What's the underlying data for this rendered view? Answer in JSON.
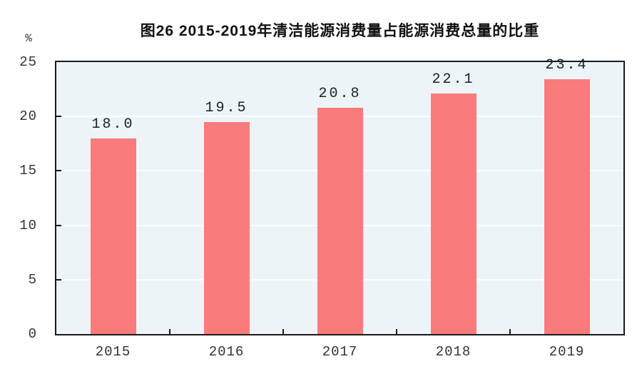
{
  "figure": {
    "title": "图26  2015-2019年清洁能源消费量占能源消费总量的比重",
    "unit_label": "%"
  },
  "colors": {
    "bar": "#FA7B7B",
    "plot_background": "#EDF4F8",
    "gridline": "#FBFDFE",
    "axis": "#1A1A1A",
    "tick_text": "#2E3238",
    "title_text": "#111111"
  },
  "chart_data": {
    "type": "bar",
    "title": "图26  2015-2019年清洁能源消费量占能源消费总量的比重",
    "categories": [
      "2015",
      "2016",
      "2017",
      "2018",
      "2019"
    ],
    "values": [
      18.0,
      19.5,
      20.8,
      22.1,
      23.4
    ],
    "value_labels": [
      "18.0",
      "19.5",
      "20.8",
      "22.1",
      "23.4"
    ],
    "series_name": "清洁能源消费量占能源消费总量的比重",
    "xlabel": "",
    "ylabel": "%",
    "ylim": [
      0,
      25
    ],
    "yticks": [
      0,
      5,
      10,
      15,
      20,
      25
    ],
    "grid": true,
    "legend_position": "none",
    "data_labels_shown": true
  }
}
